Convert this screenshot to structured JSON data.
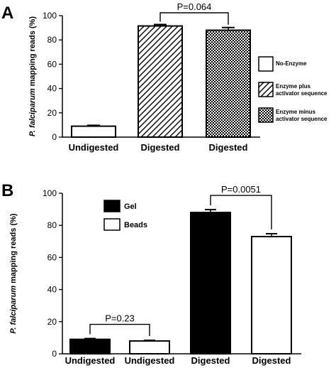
{
  "chart_data": [
    {
      "panel": "A",
      "type": "bar",
      "ylabel_italic": "P. falciparum",
      "ylabel_rest": " mapping reads (%)",
      "ylim": [
        0,
        100
      ],
      "yticks": [
        0,
        20,
        40,
        60,
        80,
        100
      ],
      "categories": [
        "Undigested",
        "Digested",
        "Digested"
      ],
      "values": [
        9,
        91.5,
        88
      ],
      "errors": [
        0.7,
        1.2,
        2.2
      ],
      "fills": [
        "No-Enzyme",
        "Enzyme plus activator sequence",
        "Enzyme minus activator sequence"
      ],
      "legend": [
        {
          "label": "No-Enzyme",
          "pattern": "white"
        },
        {
          "label": "Enzyme plus activator sequence",
          "pattern": "diagonal"
        },
        {
          "label": "Enzyme minus activator sequence",
          "pattern": "checker"
        }
      ],
      "annotations": [
        {
          "text": "P=0.064",
          "between": [
            1,
            2
          ]
        }
      ],
      "grid": false
    },
    {
      "panel": "B",
      "type": "bar",
      "ylabel_italic": "P. falciparum",
      "ylabel_rest": " mapping reads (%)",
      "ylim": [
        0,
        100
      ],
      "yticks": [
        0,
        20,
        40,
        60,
        80,
        100
      ],
      "categories": [
        "Undigested",
        "Undigested",
        "Digested",
        "Digested"
      ],
      "values": [
        9,
        8,
        88,
        73
      ],
      "errors": [
        0.5,
        0.4,
        1.8,
        1.8
      ],
      "fills": [
        "Gel",
        "Beads",
        "Gel",
        "Beads"
      ],
      "legend": [
        {
          "label": "Gel",
          "pattern": "black"
        },
        {
          "label": "Beads",
          "pattern": "white"
        }
      ],
      "annotations": [
        {
          "text": "P=0.23",
          "between": [
            0,
            1
          ]
        },
        {
          "text": "P=0.0051",
          "between": [
            2,
            3
          ]
        }
      ],
      "grid": false
    }
  ]
}
